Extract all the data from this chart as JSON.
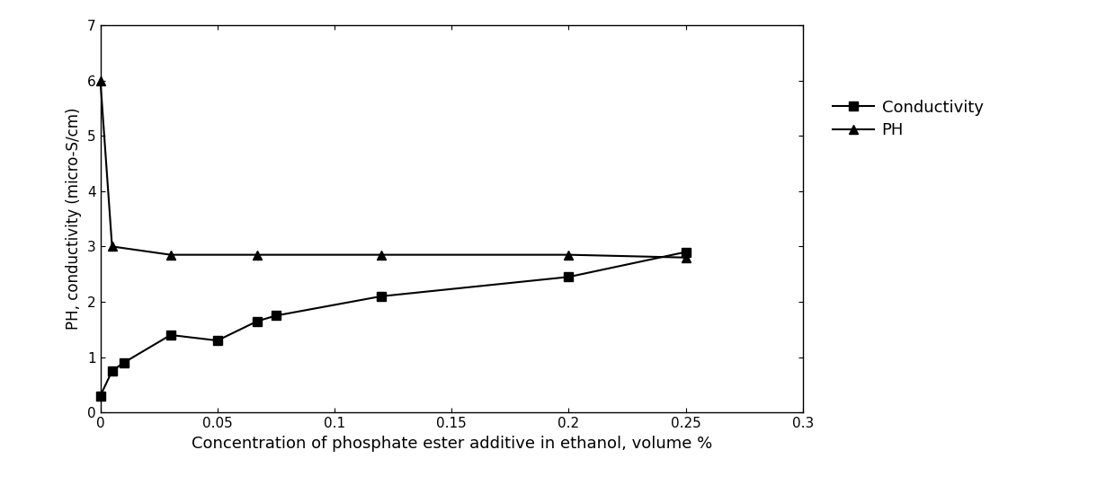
{
  "conductivity_x": [
    0,
    0.005,
    0.01,
    0.03,
    0.05,
    0.067,
    0.075,
    0.12,
    0.2,
    0.25
  ],
  "conductivity_y": [
    0.3,
    0.75,
    0.9,
    1.4,
    1.3,
    1.65,
    1.75,
    2.1,
    2.45,
    2.9
  ],
  "ph_x": [
    0,
    0.005,
    0.03,
    0.067,
    0.12,
    0.2,
    0.25
  ],
  "ph_y": [
    6.0,
    3.0,
    2.85,
    2.85,
    2.85,
    2.85,
    2.8
  ],
  "xlabel": "Concentration of phosphate ester additive in ethanol, volume %",
  "ylabel": "PH, conductivity (micro-S/cm)",
  "xlim": [
    0,
    0.3
  ],
  "ylim": [
    0,
    7
  ],
  "xticks": [
    0,
    0.05,
    0.1,
    0.15,
    0.2,
    0.25,
    0.3
  ],
  "yticks": [
    0,
    1,
    2,
    3,
    4,
    5,
    6,
    7
  ],
  "legend_conductivity": "Conductivity",
  "legend_ph": "PH",
  "line_color": "#000000",
  "marker_square": "s",
  "marker_triangle": "^",
  "marker_size": 7,
  "linewidth": 1.5,
  "figsize": [
    12.4,
    5.6
  ],
  "dpi": 100,
  "bg_color": "#ffffff"
}
